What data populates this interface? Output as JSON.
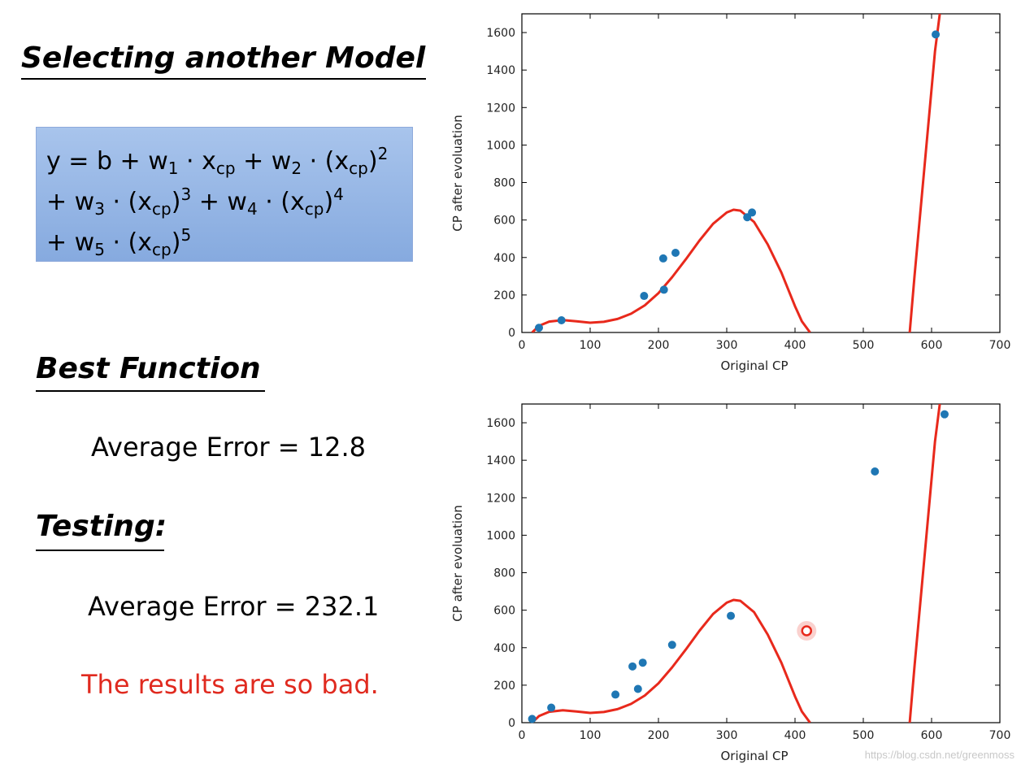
{
  "slide": {
    "title": "Selecting another Model",
    "formula": {
      "line1": {
        "a": "y = b + w",
        "a_sub": "1",
        "b": " · x",
        "b_sub": "cp",
        "c": " + w",
        "c_sub": "2",
        "d": " · (x",
        "d_sub": "cp",
        "e": ")",
        "e_sup": "2"
      },
      "line2": {
        "a": "+ w",
        "a_sub": "3",
        "b": " · (x",
        "b_sub": "cp",
        "c": ")",
        "c_sup": "3",
        "d": " + w",
        "d_sub": "4",
        "e": " · (x",
        "e_sub": "cp",
        "f": ")",
        "f_sup": "4"
      },
      "line3": {
        "a": "+ w",
        "a_sub": "5",
        "b": " · (x",
        "b_sub": "cp",
        "c": ")",
        "c_sup": "5"
      }
    },
    "best_heading": "Best Function",
    "train_error": "Average Error = 12.8",
    "testing_heading": "Testing:",
    "test_error": "Average Error = 232.1",
    "conclusion": "The results are so bad.",
    "watermark": "https://blog.csdn.net/greenmoss"
  },
  "colors": {
    "point": "#1f77b4",
    "curve": "#e8291c",
    "conclusion": "#e02a1f",
    "formula_box": "#95b5e6"
  },
  "chart_data": [
    {
      "type": "scatter",
      "title": "",
      "xlabel": "Original CP",
      "ylabel": "CP after evoluation",
      "xlim": [
        0,
        700
      ],
      "ylim": [
        0,
        1700
      ],
      "xticks": [
        0,
        100,
        200,
        300,
        400,
        500,
        600,
        700
      ],
      "yticks": [
        0,
        200,
        400,
        600,
        800,
        1000,
        1200,
        1400,
        1600
      ],
      "points": [
        {
          "x": 25,
          "y": 25
        },
        {
          "x": 58,
          "y": 65
        },
        {
          "x": 179,
          "y": 195
        },
        {
          "x": 207,
          "y": 395
        },
        {
          "x": 208,
          "y": 228
        },
        {
          "x": 225,
          "y": 425
        },
        {
          "x": 330,
          "y": 615
        },
        {
          "x": 337,
          "y": 640
        },
        {
          "x": 606,
          "y": 1590
        }
      ],
      "fit_curve": {
        "name": "degree-5 polynomial fit",
        "x": [
          15,
          25,
          40,
          60,
          80,
          100,
          120,
          140,
          160,
          180,
          200,
          220,
          240,
          260,
          280,
          300,
          310,
          320,
          340,
          360,
          380,
          400,
          410,
          422
        ],
        "y": [
          0,
          35,
          58,
          66,
          60,
          52,
          57,
          72,
          100,
          145,
          210,
          295,
          390,
          490,
          580,
          640,
          655,
          650,
          590,
          470,
          320,
          140,
          60,
          0
        ]
      },
      "fit_curve_2": {
        "x": [
          568,
          575,
          585,
          595,
          605,
          612
        ],
        "y": [
          0,
          300,
          700,
          1100,
          1500,
          1700
        ]
      }
    },
    {
      "type": "scatter",
      "title": "",
      "xlabel": "Original CP",
      "ylabel": "CP after evoluation",
      "xlim": [
        0,
        700
      ],
      "ylim": [
        0,
        1700
      ],
      "xticks": [
        0,
        100,
        200,
        300,
        400,
        500,
        600,
        700
      ],
      "yticks": [
        0,
        200,
        400,
        600,
        800,
        1000,
        1200,
        1400,
        1600
      ],
      "points": [
        {
          "x": 15,
          "y": 20
        },
        {
          "x": 43,
          "y": 80
        },
        {
          "x": 137,
          "y": 150
        },
        {
          "x": 162,
          "y": 300
        },
        {
          "x": 170,
          "y": 180
        },
        {
          "x": 177,
          "y": 320
        },
        {
          "x": 220,
          "y": 415
        },
        {
          "x": 306,
          "y": 570
        },
        {
          "x": 517,
          "y": 1340
        },
        {
          "x": 619,
          "y": 1645
        }
      ],
      "highlight_point": {
        "x": 417,
        "y": 490
      },
      "fit_curve": {
        "name": "degree-5 polynomial fit",
        "x": [
          15,
          25,
          40,
          60,
          80,
          100,
          120,
          140,
          160,
          180,
          200,
          220,
          240,
          260,
          280,
          300,
          310,
          320,
          340,
          360,
          380,
          400,
          410,
          422
        ],
        "y": [
          0,
          35,
          58,
          66,
          60,
          52,
          57,
          72,
          100,
          145,
          210,
          295,
          390,
          490,
          580,
          640,
          655,
          650,
          590,
          470,
          320,
          140,
          60,
          0
        ]
      },
      "fit_curve_2": {
        "x": [
          568,
          575,
          585,
          595,
          605,
          612
        ],
        "y": [
          0,
          300,
          700,
          1100,
          1500,
          1700
        ]
      }
    }
  ]
}
